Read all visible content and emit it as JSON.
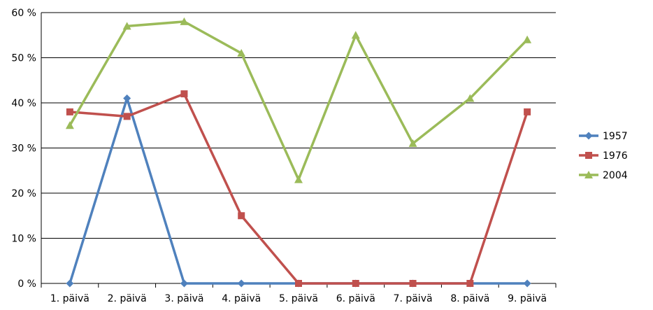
{
  "chart_data": {
    "type": "line",
    "title": "",
    "xlabel": "",
    "ylabel": "",
    "categories": [
      "1. päivä",
      "2. päivä",
      "3. päivä",
      "4. päivä",
      "5. päivä",
      "6. päivä",
      "7. päivä",
      "8. päivä",
      "9. päivä"
    ],
    "y_ticks": [
      "0 %",
      "10 %",
      "20 %",
      "30 %",
      "40 %",
      "50 %",
      "60 %"
    ],
    "ylim": [
      0,
      60
    ],
    "grid": true,
    "legend_position": "right",
    "series": [
      {
        "name": "1957",
        "color": "#4F81BD",
        "marker": "diamond",
        "values": [
          0,
          41,
          0,
          0,
          0,
          0,
          0,
          0,
          0
        ]
      },
      {
        "name": "1976",
        "color": "#C0504D",
        "marker": "square",
        "values": [
          38,
          37,
          42,
          15,
          0,
          0,
          0,
          0,
          38
        ]
      },
      {
        "name": "2004",
        "color": "#9BBB59",
        "marker": "triangle",
        "values": [
          35,
          57,
          58,
          51,
          23,
          55,
          31,
          41,
          54
        ]
      }
    ]
  }
}
